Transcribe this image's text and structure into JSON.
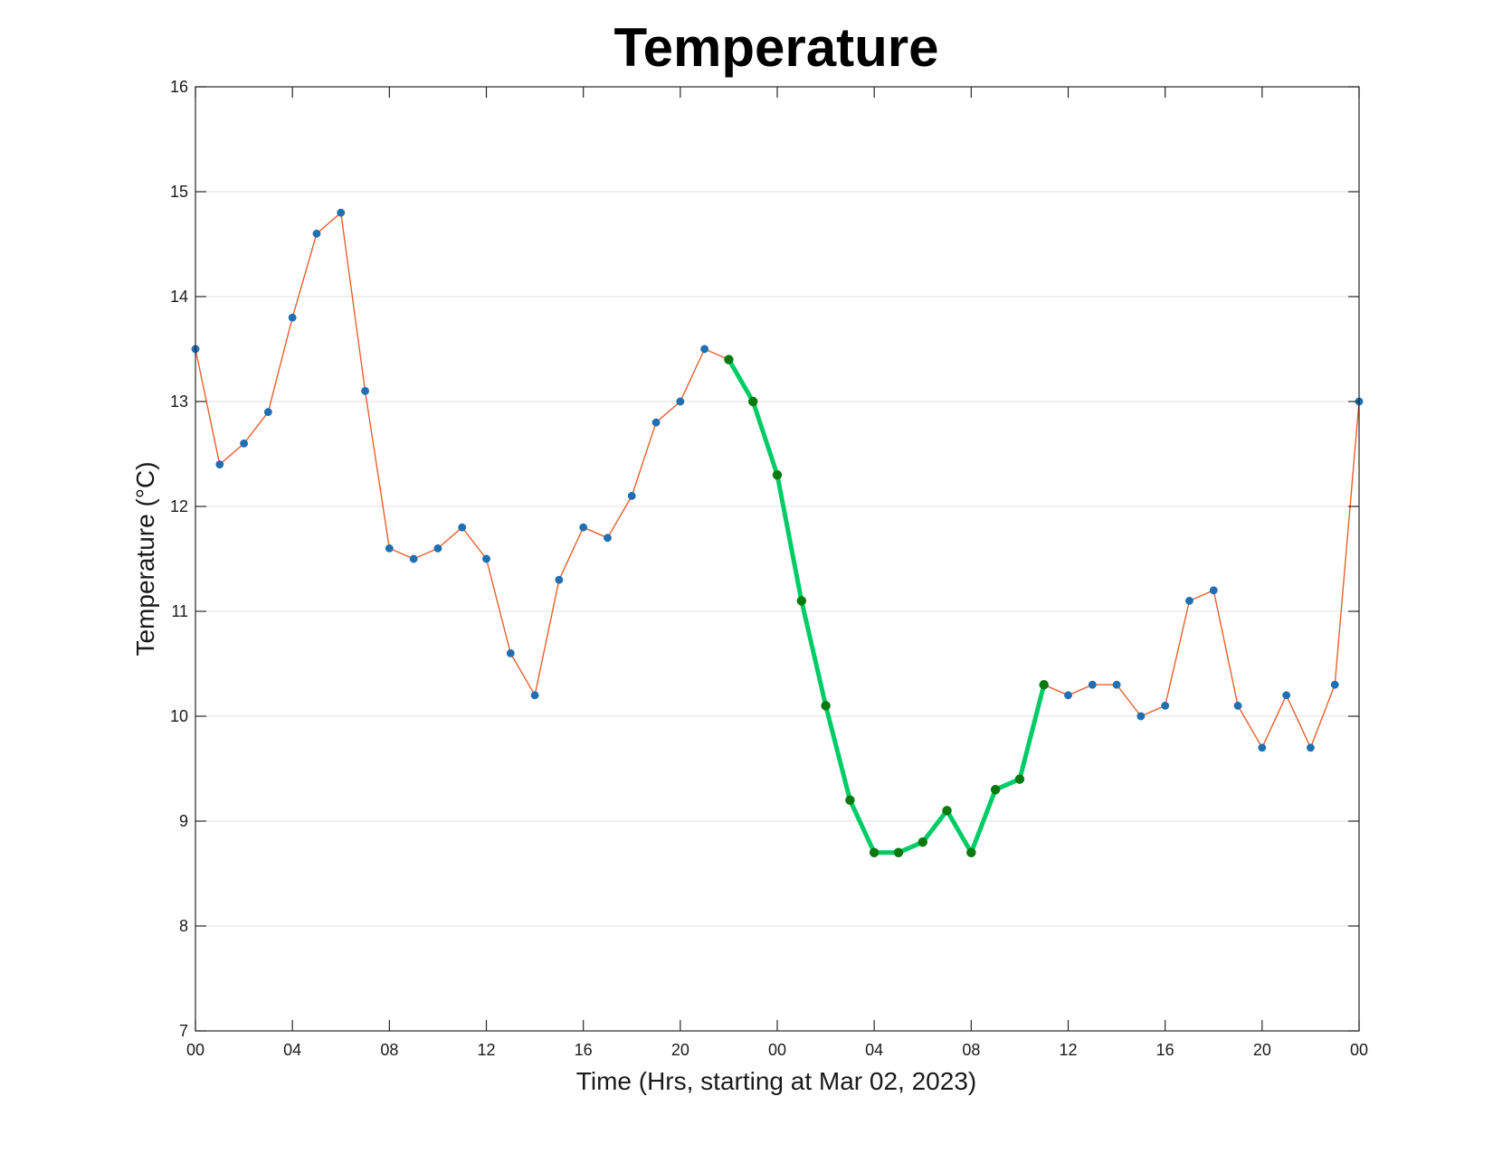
{
  "chart_data": {
    "type": "line",
    "title": "Temperature",
    "xlabel": "Time (Hrs, starting at Mar 02, 2023)",
    "ylabel": "Temperature (°C)",
    "ylim": [
      7,
      16
    ],
    "xlim_hours": [
      0,
      48
    ],
    "grid": "horizontal",
    "y_ticks": [
      "7",
      "8",
      "9",
      "10",
      "11",
      "12",
      "13",
      "14",
      "15",
      "16"
    ],
    "x_ticks": [
      {
        "hour": 0,
        "label": "00"
      },
      {
        "hour": 4,
        "label": "04"
      },
      {
        "hour": 8,
        "label": "08"
      },
      {
        "hour": 12,
        "label": "12"
      },
      {
        "hour": 16,
        "label": "16"
      },
      {
        "hour": 20,
        "label": "20"
      },
      {
        "hour": 24,
        "label": "00"
      },
      {
        "hour": 28,
        "label": "04"
      },
      {
        "hour": 32,
        "label": "08"
      },
      {
        "hour": 36,
        "label": "12"
      },
      {
        "hour": 40,
        "label": "16"
      },
      {
        "hour": 44,
        "label": "20"
      },
      {
        "hour": 48,
        "label": "00"
      }
    ],
    "series": [
      {
        "line_color": "#e8602c",
        "marker_color": "#1f6fb2",
        "hours": [
          0,
          1,
          2,
          3,
          4,
          5,
          6,
          7,
          8,
          9,
          10,
          11,
          12,
          13,
          14,
          15,
          16,
          17,
          18,
          19,
          20,
          21,
          22,
          23,
          24,
          25,
          26,
          27,
          28,
          29,
          30,
          31,
          32,
          33,
          34,
          35,
          36,
          37,
          38,
          39,
          40,
          41,
          42,
          43,
          44,
          45,
          46,
          47,
          48
        ],
        "values": [
          13.5,
          12.4,
          12.6,
          12.9,
          13.8,
          14.6,
          14.8,
          13.1,
          11.6,
          11.5,
          11.6,
          11.8,
          11.5,
          10.6,
          10.2,
          11.3,
          11.8,
          11.7,
          12.1,
          12.8,
          13.0,
          13.5,
          13.4,
          13.0,
          12.3,
          11.1,
          10.1,
          9.2,
          8.7,
          8.7,
          8.8,
          9.1,
          8.7,
          9.3,
          9.4,
          10.3,
          10.2,
          10.3,
          10.3,
          10.0,
          10.1,
          11.1,
          11.2,
          10.1,
          9.7,
          10.2,
          9.7,
          10.3,
          13.0
        ]
      },
      {
        "line_color": "#00cc66",
        "marker_color": "#0a7a10",
        "hours": [
          22,
          23,
          24,
          25,
          26,
          27,
          28,
          29,
          30,
          31,
          32,
          33,
          34,
          35
        ],
        "values": [
          13.4,
          13.0,
          12.3,
          11.1,
          10.1,
          9.2,
          8.7,
          8.7,
          8.8,
          9.1,
          8.7,
          9.3,
          9.4,
          10.3
        ]
      }
    ]
  }
}
